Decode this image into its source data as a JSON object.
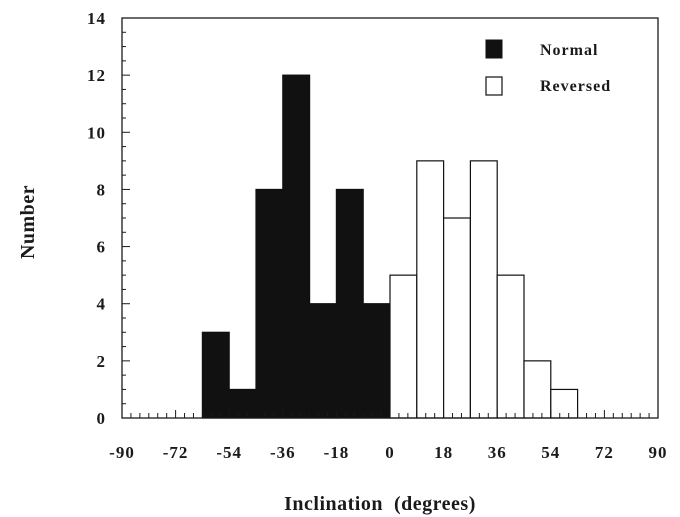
{
  "chart_data": {
    "type": "bar",
    "xlabel": "Inclination (degrees)",
    "ylabel": "Number",
    "xlim": [
      -90,
      90
    ],
    "ylim": [
      0,
      14
    ],
    "bin_width": 9,
    "x_ticks": [
      -90,
      -72,
      -54,
      -36,
      -18,
      0,
      18,
      36,
      54,
      72,
      90
    ],
    "x_tick_labels": [
      "-90",
      "-72",
      "-54",
      "-36",
      "-18",
      "0",
      "18",
      "36",
      "54",
      "72",
      "90"
    ],
    "y_ticks": [
      0,
      2,
      4,
      6,
      8,
      10,
      12,
      14
    ],
    "y_tick_labels": [
      "0",
      "2",
      "4",
      "6",
      "8",
      "10",
      "12",
      "14"
    ],
    "legend_position": "top-right",
    "series": [
      {
        "name": "Normal",
        "fill": "#111111",
        "bins": [
          {
            "x0": -63,
            "x1": -54,
            "count": 3
          },
          {
            "x0": -54,
            "x1": -45,
            "count": 1
          },
          {
            "x0": -45,
            "x1": -36,
            "count": 8
          },
          {
            "x0": -36,
            "x1": -27,
            "count": 12
          },
          {
            "x0": -27,
            "x1": -18,
            "count": 4
          },
          {
            "x0": -18,
            "x1": -9,
            "count": 8
          },
          {
            "x0": -9,
            "x1": 0,
            "count": 4
          }
        ]
      },
      {
        "name": "Reversed",
        "fill": "#ffffff",
        "bins": [
          {
            "x0": 0,
            "x1": 9,
            "count": 5
          },
          {
            "x0": 9,
            "x1": 18,
            "count": 9
          },
          {
            "x0": 18,
            "x1": 27,
            "count": 7
          },
          {
            "x0": 27,
            "x1": 36,
            "count": 9
          },
          {
            "x0": 36,
            "x1": 45,
            "count": 5
          },
          {
            "x0": 45,
            "x1": 54,
            "count": 2
          },
          {
            "x0": 54,
            "x1": 63,
            "count": 1
          }
        ]
      }
    ]
  },
  "legend": {
    "normal_label": "Normal",
    "reversed_label": "Reversed"
  },
  "axes": {
    "xlabel": "Inclination  (degrees)",
    "ylabel": "Number"
  }
}
